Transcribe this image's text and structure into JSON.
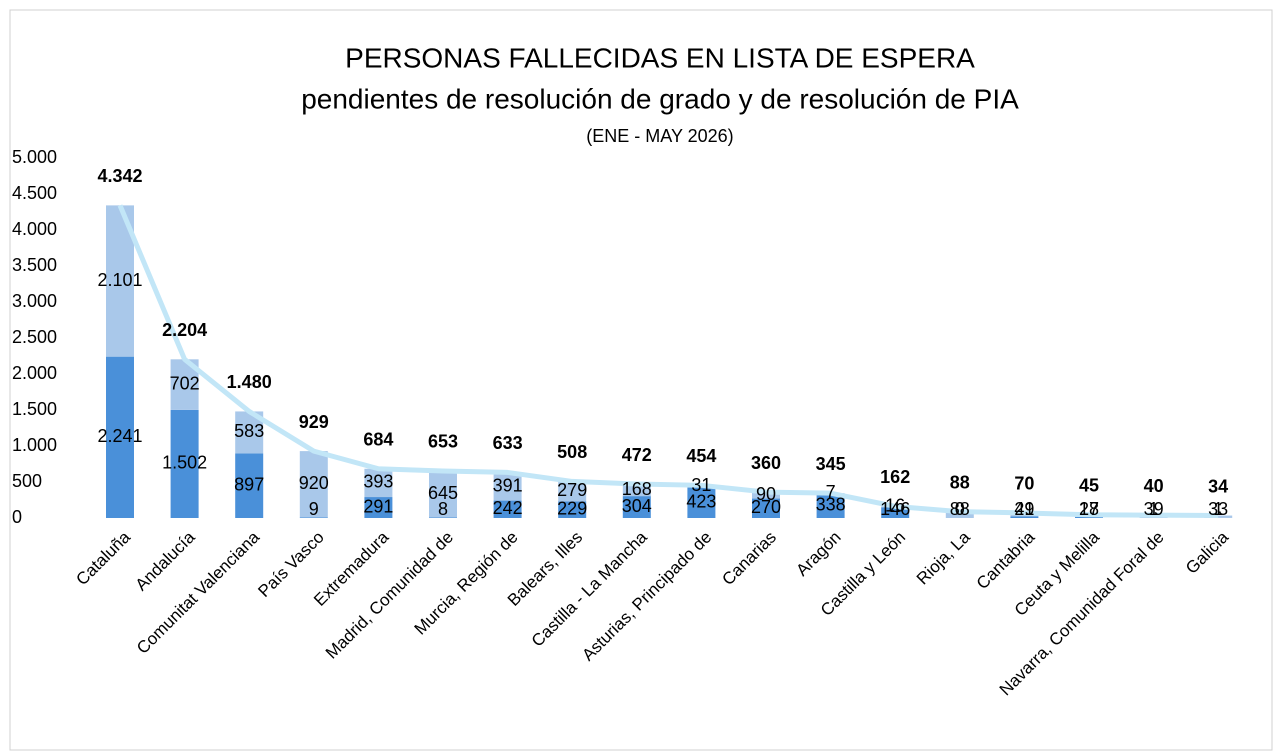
{
  "chart_data": {
    "type": "bar",
    "title": "PERSONAS FALLECIDAS EN LISTA DE ESPERA",
    "subtitle": "pendientes de resolución de grado y de resolución de PIA",
    "period": "(ENE - MAY 2026)",
    "stacked": true,
    "categories": [
      "Cataluña",
      "Andalucía",
      "Comunitat Valenciana",
      "País Vasco",
      "Extremadura",
      "Madrid, Comunidad de",
      "Murcia, Región de",
      "Balears, Illes",
      "Castilla - La Mancha",
      "Asturias, Principado de",
      "Canarias",
      "Aragón",
      "Castilla y León",
      "Rioja, La",
      "Cantabria",
      "Ceuta y Melilla",
      "Navarra, Comunidad Foral de",
      "Galicia"
    ],
    "series": [
      {
        "type": "bar",
        "color": "#4a90d9",
        "values": [
          2241,
          1502,
          897,
          9,
          291,
          8,
          242,
          229,
          304,
          423,
          270,
          338,
          146,
          0,
          21,
          17,
          1,
          1
        ],
        "value_labels": [
          "2.241",
          "1.502",
          "897",
          "9",
          "291",
          "8",
          "242",
          "229",
          "304",
          "423",
          "270",
          "338",
          "146",
          "0",
          "21",
          "17",
          "1",
          "1"
        ]
      },
      {
        "type": "bar",
        "color": "#a9c8ea",
        "values": [
          2101,
          702,
          583,
          920,
          393,
          645,
          391,
          279,
          168,
          31,
          90,
          7,
          16,
          88,
          49,
          28,
          39,
          33
        ],
        "value_labels": [
          "2.101",
          "702",
          "583",
          "920",
          "393",
          "645",
          "391",
          "279",
          "168",
          "31",
          "90",
          "7",
          "16",
          "88",
          "49",
          "28",
          "39",
          "33"
        ]
      },
      {
        "type": "line",
        "color": "#c2e6f7",
        "values": [
          4342,
          2204,
          1480,
          929,
          684,
          653,
          633,
          508,
          472,
          454,
          360,
          345,
          162,
          88,
          70,
          45,
          40,
          34
        ],
        "value_labels": [
          "4.342",
          "2.204",
          "1.480",
          "929",
          "684",
          "653",
          "633",
          "508",
          "472",
          "454",
          "360",
          "345",
          "162",
          "88",
          "70",
          "45",
          "40",
          "34"
        ]
      }
    ],
    "ylim": [
      0,
      5000
    ],
    "yticks": [
      0,
      500,
      {
        "value": 1000,
        "label": "1.000"
      },
      {
        "value": 1500,
        "label": "1.500"
      },
      {
        "value": 2000,
        "label": "2.000"
      },
      {
        "value": 2500,
        "label": "2.500"
      },
      {
        "value": 3000,
        "label": "3.000"
      },
      {
        "value": 3500,
        "label": "3.500"
      },
      {
        "value": 4000,
        "label": "4.000"
      },
      {
        "value": 4500,
        "label": "4.500"
      },
      {
        "value": 5000,
        "label": "5.000"
      }
    ],
    "grid": false
  }
}
